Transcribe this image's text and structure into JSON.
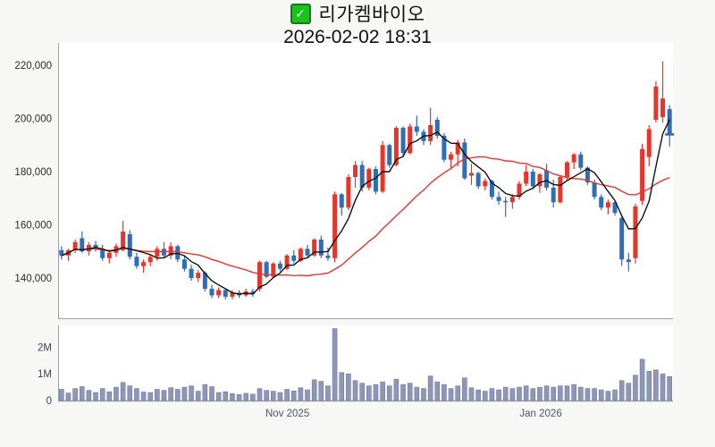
{
  "header": {
    "checkbox_state": "checked",
    "checkbox_glyph": "✓",
    "title": "리가켐바이오",
    "subtitle": "2026-02-02 18:31"
  },
  "chart_data": {
    "type": "candlestick",
    "title": "리가켐바이오",
    "timestamp": "2026-02-02 18:31",
    "grid": false,
    "candle_fields": [
      "open",
      "high",
      "low",
      "close",
      "volume"
    ],
    "price_axis": {
      "ylim": [
        124900,
        228400
      ],
      "ticks": [
        {
          "label": "220,000",
          "value": 220000
        },
        {
          "label": "200,000",
          "value": 200000
        },
        {
          "label": "180,000",
          "value": 180000
        },
        {
          "label": "160,000",
          "value": 160000
        },
        {
          "label": "140,000",
          "value": 140000
        }
      ]
    },
    "volume_axis": {
      "ylim": [
        0,
        2820000
      ],
      "ticks": [
        {
          "label": "2M",
          "value": 2000000
        },
        {
          "label": "1M",
          "value": 1000000
        },
        {
          "label": "0",
          "value": 0
        }
      ]
    },
    "x_axis": {
      "labels": [
        {
          "label": "Nov 2025",
          "position": 0.373
        },
        {
          "label": "Jan 2026",
          "position": 0.785
        }
      ]
    },
    "colors": {
      "up": "#e8352c",
      "down": "#2e6db8",
      "volume": "#8e97b8",
      "volume_border": "#707a9c",
      "ma_short": "#111111",
      "ma_long": "#e8352c",
      "axis": "#9aa0a6",
      "tick_text": "#2b2b2b",
      "volume_tick_text": "#3c425a",
      "date_text": "#4a5568",
      "plot_bg": "#ffffff",
      "page_bg": "#f7f7f5",
      "checkbox_fill": "#1cc21c",
      "checkbox_border": "#0f7e16"
    },
    "moving_averages": [
      {
        "name": "long",
        "window": 20,
        "color": "#e8352c"
      },
      {
        "name": "short",
        "window": 5,
        "color": "#111111"
      }
    ],
    "candles": [
      [
        150500,
        152000,
        147000,
        148500,
        420000
      ],
      [
        148500,
        151000,
        146500,
        150500,
        280000
      ],
      [
        150500,
        154500,
        149500,
        153500,
        450000
      ],
      [
        155000,
        157500,
        149500,
        150000,
        520000
      ],
      [
        150000,
        153500,
        148500,
        152500,
        380000
      ],
      [
        152500,
        154000,
        150000,
        151000,
        300000
      ],
      [
        151000,
        152500,
        146500,
        147500,
        450000
      ],
      [
        147500,
        150500,
        145500,
        149500,
        330000
      ],
      [
        149500,
        153000,
        148000,
        152000,
        500000
      ],
      [
        150500,
        161500,
        150000,
        157500,
        680000
      ],
      [
        156500,
        158000,
        147000,
        148000,
        550000
      ],
      [
        148000,
        149500,
        143500,
        144500,
        450000
      ],
      [
        144500,
        147000,
        142000,
        146000,
        320000
      ],
      [
        146000,
        149000,
        144500,
        148000,
        300000
      ],
      [
        148000,
        152000,
        146500,
        151000,
        420000
      ],
      [
        151000,
        153500,
        147500,
        148500,
        380000
      ],
      [
        148500,
        153500,
        147000,
        152000,
        480000
      ],
      [
        152000,
        152500,
        146000,
        147000,
        420000
      ],
      [
        147000,
        148500,
        142500,
        143500,
        500000
      ],
      [
        143500,
        145000,
        139000,
        140000,
        550000
      ],
      [
        140000,
        143000,
        138500,
        142000,
        350000
      ],
      [
        142000,
        142500,
        135000,
        136000,
        600000
      ],
      [
        136000,
        137500,
        132500,
        133500,
        520000
      ],
      [
        133500,
        136500,
        132500,
        135500,
        300000
      ],
      [
        135500,
        136000,
        132000,
        133000,
        330000
      ],
      [
        133000,
        135500,
        132000,
        134500,
        260000
      ],
      [
        134500,
        135500,
        132500,
        133500,
        220000
      ],
      [
        133500,
        136000,
        133000,
        135000,
        270000
      ],
      [
        135000,
        136000,
        133000,
        134000,
        240000
      ],
      [
        136000,
        146500,
        135000,
        146000,
        450000
      ],
      [
        146000,
        146500,
        140000,
        140500,
        380000
      ],
      [
        140500,
        146000,
        140000,
        145500,
        350000
      ],
      [
        145500,
        146500,
        142500,
        143500,
        300000
      ],
      [
        143500,
        149000,
        143000,
        148500,
        420000
      ],
      [
        148500,
        150500,
        145500,
        146500,
        360000
      ],
      [
        146500,
        151500,
        146000,
        151000,
        480000
      ],
      [
        151000,
        152500,
        147500,
        148500,
        400000
      ],
      [
        148500,
        155000,
        148000,
        154500,
        780000
      ],
      [
        154500,
        156000,
        147500,
        148500,
        720000
      ],
      [
        148500,
        151500,
        146500,
        147500,
        550000
      ],
      [
        147500,
        172500,
        146000,
        171500,
        2700000
      ],
      [
        171500,
        172000,
        163500,
        166500,
        1050000
      ],
      [
        166500,
        179000,
        165500,
        178000,
        1000000
      ],
      [
        178000,
        184000,
        174000,
        182500,
        750000
      ],
      [
        182500,
        184000,
        172500,
        174000,
        650000
      ],
      [
        174000,
        181500,
        173000,
        181000,
        550000
      ],
      [
        181000,
        182000,
        171500,
        172500,
        600000
      ],
      [
        172500,
        191500,
        172000,
        190000,
        700000
      ],
      [
        190000,
        190500,
        181500,
        182500,
        550000
      ],
      [
        182500,
        197000,
        182000,
        196500,
        800000
      ],
      [
        196500,
        197000,
        185500,
        187000,
        600000
      ],
      [
        187000,
        198000,
        186500,
        197000,
        650000
      ],
      [
        197000,
        201000,
        193500,
        195000,
        500000
      ],
      [
        195000,
        196000,
        190000,
        191500,
        450000
      ],
      [
        191500,
        204000,
        190000,
        197500,
        920000
      ],
      [
        199500,
        200500,
        192500,
        193500,
        700000
      ],
      [
        193500,
        194500,
        183500,
        184500,
        600000
      ],
      [
        184500,
        187500,
        181500,
        186500,
        450000
      ],
      [
        186500,
        192000,
        182000,
        191000,
        550000
      ],
      [
        191000,
        192500,
        177000,
        177500,
        850000
      ],
      [
        178500,
        183000,
        175000,
        179500,
        480000
      ],
      [
        179500,
        180000,
        173500,
        174500,
        400000
      ],
      [
        174500,
        177500,
        173000,
        176500,
        350000
      ],
      [
        176500,
        177000,
        169500,
        170500,
        450000
      ],
      [
        170500,
        172500,
        167500,
        169000,
        400000
      ],
      [
        169000,
        170500,
        163000,
        168500,
        500000
      ],
      [
        168500,
        171500,
        166000,
        170500,
        450000
      ],
      [
        170500,
        176500,
        169500,
        175500,
        500000
      ],
      [
        175500,
        182500,
        174500,
        180000,
        550000
      ],
      [
        180000,
        181000,
        173500,
        174500,
        450000
      ],
      [
        174500,
        179500,
        172000,
        179000,
        500000
      ],
      [
        180500,
        183000,
        173000,
        174000,
        550000
      ],
      [
        174000,
        177000,
        166500,
        168500,
        500000
      ],
      [
        168500,
        178500,
        168000,
        178000,
        550000
      ],
      [
        178000,
        184000,
        177000,
        183500,
        550000
      ],
      [
        183500,
        187000,
        181000,
        186500,
        600000
      ],
      [
        186500,
        187500,
        180500,
        181500,
        500000
      ],
      [
        181500,
        182000,
        175000,
        176000,
        450000
      ],
      [
        176000,
        177000,
        169500,
        170500,
        450000
      ],
      [
        170500,
        171500,
        165500,
        166500,
        400000
      ],
      [
        166500,
        169500,
        164000,
        168500,
        350000
      ],
      [
        168500,
        169000,
        163500,
        164500,
        400000
      ],
      [
        162500,
        163500,
        144500,
        147000,
        750000
      ],
      [
        147000,
        149500,
        142500,
        146000,
        650000
      ],
      [
        147500,
        168000,
        145500,
        167000,
        950000
      ],
      [
        169000,
        190500,
        167500,
        188500,
        1550000
      ],
      [
        185500,
        197500,
        182000,
        196000,
        1100000
      ],
      [
        199500,
        214000,
        198500,
        212000,
        1150000
      ],
      [
        200500,
        221500,
        198500,
        207500,
        1000000
      ],
      [
        203500,
        205000,
        189500,
        194000,
        900000
      ]
    ]
  }
}
